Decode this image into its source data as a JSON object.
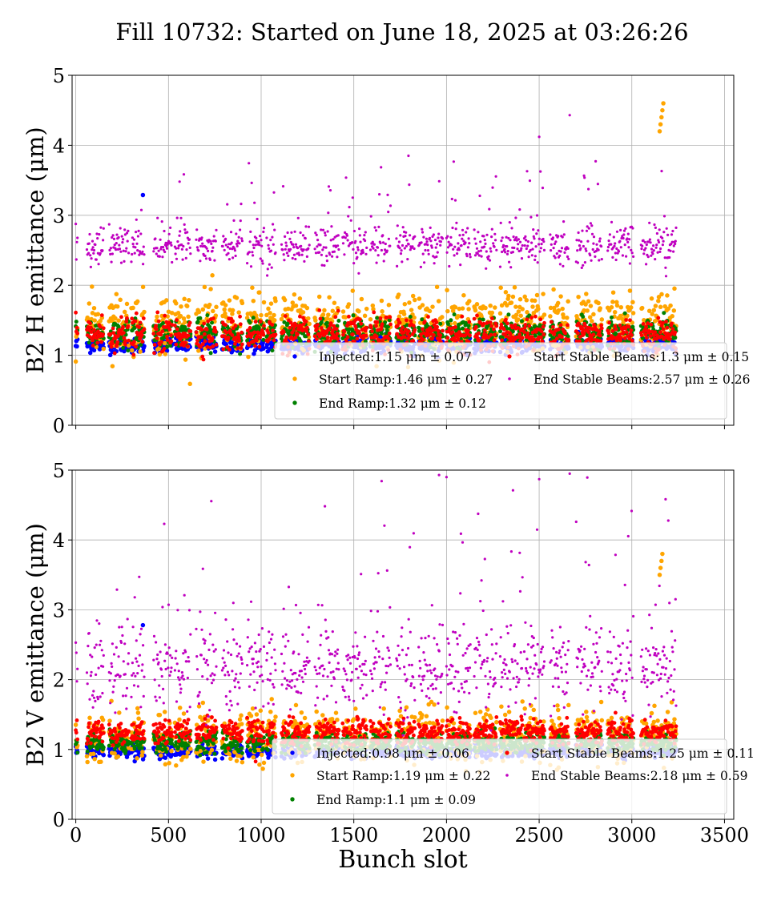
{
  "figure": {
    "title": "Fill 10732: Started on June 18, 2025 at 03:26:26",
    "xlabel": "Bunch slot"
  },
  "chart_data": [
    {
      "type": "scatter",
      "ylabel": "B2 H emittance (μm)",
      "xlim": [
        -20,
        3550
      ],
      "ylim": [
        0,
        5
      ],
      "xticks": [
        0,
        500,
        1000,
        1500,
        2000,
        2500,
        3000,
        3500
      ],
      "yticks": [
        0,
        1,
        2,
        3,
        4,
        5
      ],
      "show_xtick_labels": false,
      "grid": true,
      "legend_position": "lower-right",
      "series": [
        {
          "name": "Injected",
          "mean": 1.15,
          "std": 0.07,
          "color": "#0000ff",
          "legend": "Injected:1.15 μm ± 0.07",
          "outliers": [
            {
              "x": 362,
              "y": 3.29
            }
          ]
        },
        {
          "name": "Start Ramp",
          "mean": 1.46,
          "std": 0.27,
          "color": "#ffa500",
          "legend": "Start Ramp:1.46 μm ± 0.27",
          "outliers": [
            {
              "x": 3150,
              "y": 4.2
            },
            {
              "x": 3155,
              "y": 4.3
            },
            {
              "x": 3160,
              "y": 4.4
            },
            {
              "x": 3165,
              "y": 4.5
            },
            {
              "x": 3170,
              "y": 4.6
            }
          ]
        },
        {
          "name": "End Ramp",
          "mean": 1.32,
          "std": 0.12,
          "color": "#008000",
          "legend": "End Ramp:1.32 μm ± 0.12",
          "outliers": []
        },
        {
          "name": "Start Stable Beams",
          "mean": 1.3,
          "std": 0.15,
          "color": "#ff0000",
          "legend": "Start Stable Beams:1.3 μm ± 0.15",
          "outliers": []
        },
        {
          "name": "End Stable Beams",
          "mean": 2.57,
          "std": 0.26,
          "color": "#c000c0",
          "legend": "End Stable Beams:2.57 μm ± 0.26",
          "outliers": [
            {
              "x": 560,
              "y": 3.48
            },
            {
              "x": 1795,
              "y": 3.85
            },
            {
              "x": 2500,
              "y": 4.12
            },
            {
              "x": 2665,
              "y": 4.43
            }
          ]
        }
      ]
    },
    {
      "type": "scatter",
      "ylabel": "B2 V emittance (μm)",
      "xlim": [
        -20,
        3550
      ],
      "ylim": [
        0,
        5
      ],
      "xticks": [
        0,
        500,
        1000,
        1500,
        2000,
        2500,
        3000,
        3500
      ],
      "yticks": [
        0,
        1,
        2,
        3,
        4,
        5
      ],
      "show_xtick_labels": true,
      "grid": true,
      "legend_position": "lower-right",
      "series": [
        {
          "name": "Injected",
          "mean": 0.98,
          "std": 0.06,
          "color": "#0000ff",
          "legend": "Injected:0.98 μm ± 0.06",
          "outliers": [
            {
              "x": 362,
              "y": 2.78
            }
          ]
        },
        {
          "name": "Start Ramp",
          "mean": 1.19,
          "std": 0.22,
          "color": "#ffa500",
          "legend": "Start Ramp:1.19 μm ± 0.22",
          "outliers": [
            {
              "x": 3150,
              "y": 3.5
            },
            {
              "x": 3155,
              "y": 3.6
            },
            {
              "x": 3160,
              "y": 3.7
            },
            {
              "x": 3165,
              "y": 3.8
            }
          ]
        },
        {
          "name": "End Ramp",
          "mean": 1.1,
          "std": 0.09,
          "color": "#008000",
          "legend": "End Ramp:1.1 μm ± 0.09",
          "outliers": []
        },
        {
          "name": "Start Stable Beams",
          "mean": 1.25,
          "std": 0.11,
          "color": "#ff0000",
          "legend": "Start Stable Beams:1.25 μm ± 0.11",
          "outliers": []
        },
        {
          "name": "End Stable Beams",
          "mean": 2.18,
          "std": 0.59,
          "color": "#c000c0",
          "legend": "End Stable Beams:2.18 μm ± 0.59",
          "outliers": [
            {
              "x": 810,
              "y": 2.86
            },
            {
              "x": 1960,
              "y": 4.93
            },
            {
              "x": 2000,
              "y": 4.9
            },
            {
              "x": 2500,
              "y": 4.87
            },
            {
              "x": 2665,
              "y": 4.95
            }
          ]
        }
      ]
    }
  ],
  "bunch_trains": [
    [
      0,
      10
    ],
    [
      60,
      150
    ],
    [
      180,
      285
    ],
    [
      300,
      370
    ],
    [
      420,
      520
    ],
    [
      535,
      620
    ],
    [
      650,
      760
    ],
    [
      790,
      900
    ],
    [
      925,
      1015
    ],
    [
      1030,
      1080
    ],
    [
      1110,
      1260
    ],
    [
      1290,
      1420
    ],
    [
      1440,
      1570
    ],
    [
      1590,
      1700
    ],
    [
      1730,
      1830
    ],
    [
      1850,
      1980
    ],
    [
      2000,
      2130
    ],
    [
      2150,
      2270
    ],
    [
      2290,
      2410
    ],
    [
      2420,
      2530
    ],
    [
      2560,
      2660
    ],
    [
      2700,
      2840
    ],
    [
      2870,
      3010
    ],
    [
      3050,
      3240
    ]
  ]
}
